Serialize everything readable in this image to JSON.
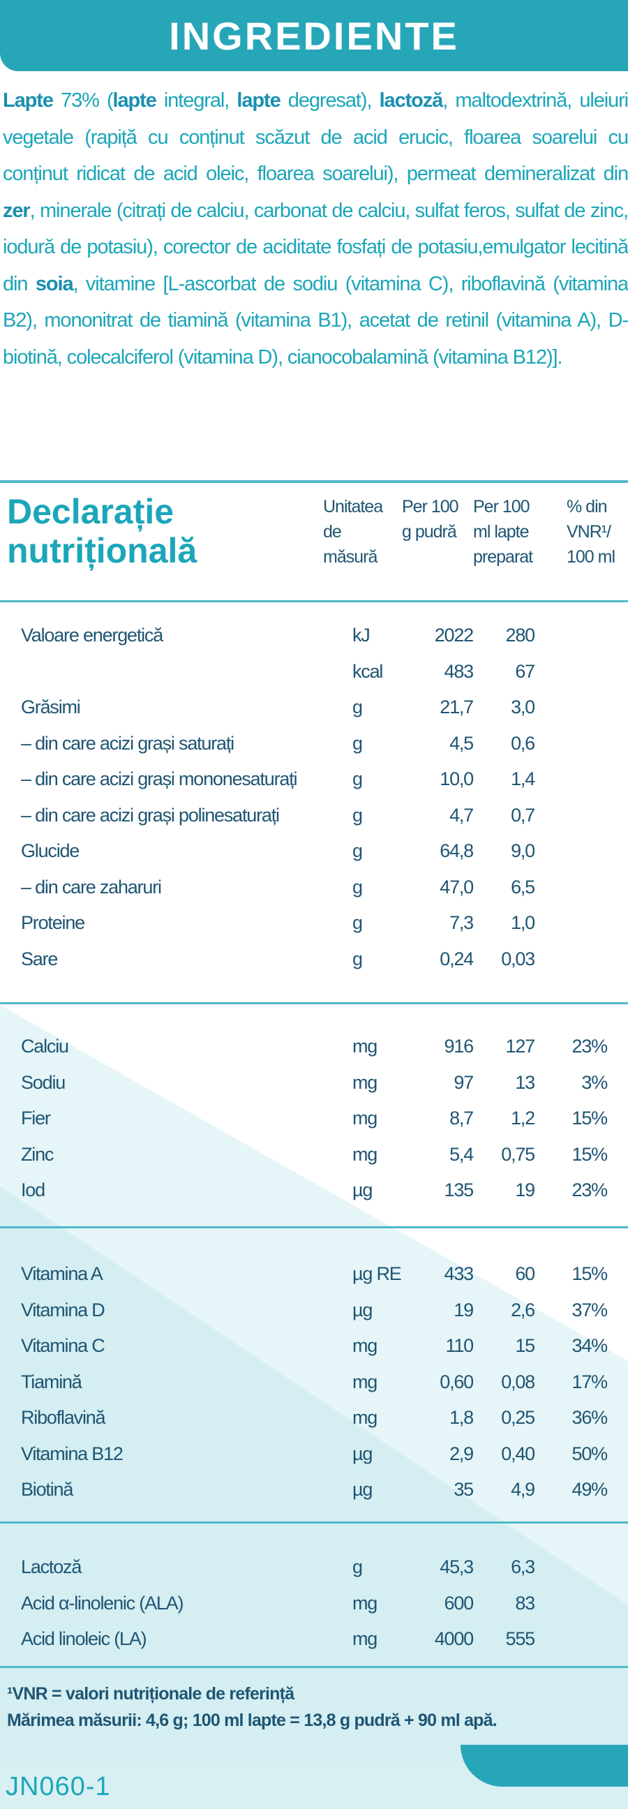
{
  "header": {
    "title": "INGREDIENTE"
  },
  "ingredients": {
    "segments": [
      {
        "text": "Lapte",
        "bold": true
      },
      {
        "text": " 73% (",
        "bold": false
      },
      {
        "text": "lapte",
        "bold": true
      },
      {
        "text": " integral, ",
        "bold": false
      },
      {
        "text": "lapte",
        "bold": true
      },
      {
        "text": " degresat), ",
        "bold": false
      },
      {
        "text": "lactoză",
        "bold": true
      },
      {
        "text": ", maltodextrină, uleiuri vegetale (rapiță cu conținut scăzut de acid erucic, floarea soarelui cu conținut ridicat de acid oleic, floarea soarelui), permeat demineralizat din ",
        "bold": false
      },
      {
        "text": "zer",
        "bold": true
      },
      {
        "text": ", minerale (citrați de calciu, carbonat de calciu, sulfat feros, sulfat de zinc, iodură de potasiu), corector de aciditate fosfați de potasiu,emulgator lecitină din ",
        "bold": false
      },
      {
        "text": "soia",
        "bold": true
      },
      {
        "text": ", vitamine [L-ascorbat de sodiu (vitamina C), riboflavină (vitamina B2), mononitrat de tiamină (vitamina B1), acetat de retinil (vitamina A), D-biotină, colecalciferol (vitamina D), cianocobalamină (vitamina B12)].",
        "bold": false
      }
    ]
  },
  "nutrition": {
    "title": "Declarație nutrițională",
    "columns": [
      "Unitatea de măsură",
      "Per 100 g pudră",
      "Per 100 ml lapte preparat",
      "% din VNR¹/ 100 ml"
    ],
    "groups": [
      [
        {
          "name": "Valoare energetică",
          "unit": "kJ",
          "per_100g": "2022",
          "per_100ml": "280"
        },
        {
          "unit": "kcal",
          "per_100g": "483",
          "per_100ml": "67"
        },
        {
          "name": "Grăsimi",
          "unit": "g",
          "per_100g": "21,7",
          "per_100ml": "3,0"
        },
        {
          "name": "– din care acizi grași saturați",
          "unit": "g",
          "per_100g": "4,5",
          "per_100ml": "0,6"
        },
        {
          "name": "– din care acizi grași mononesaturați",
          "unit": "g",
          "per_100g": "10,0",
          "per_100ml": "1,4"
        },
        {
          "name": "– din care acizi grași polinesaturați",
          "unit": "g",
          "per_100g": "4,7",
          "per_100ml": "0,7"
        },
        {
          "name": "Glucide",
          "unit": "g",
          "per_100g": "64,8",
          "per_100ml": "9,0"
        },
        {
          "name": "– din care zaharuri",
          "unit": "g",
          "per_100g": "47,0",
          "per_100ml": "6,5"
        },
        {
          "name": "Proteine",
          "unit": "g",
          "per_100g": "7,3",
          "per_100ml": "1,0"
        },
        {
          "name": "Sare",
          "unit": "g",
          "per_100g": "0,24",
          "per_100ml": "0,03"
        }
      ],
      [
        {
          "name": "Calciu",
          "unit": "mg",
          "per_100g": "916",
          "per_100ml": "127",
          "vnr": "23%"
        },
        {
          "name": "Sodiu",
          "unit": "mg",
          "per_100g": "97",
          "per_100ml": "13",
          "vnr": "3%"
        },
        {
          "name": "Fier",
          "unit": "mg",
          "per_100g": "8,7",
          "per_100ml": "1,2",
          "vnr": "15%"
        },
        {
          "name": "Zinc",
          "unit": "mg",
          "per_100g": "5,4",
          "per_100ml": "0,75",
          "vnr": "15%"
        },
        {
          "name": "Iod",
          "unit": "µg",
          "per_100g": "135",
          "per_100ml": "19",
          "vnr": "23%"
        }
      ],
      [
        {
          "name": "Vitamina A",
          "unit": "µg RE",
          "per_100g": "433",
          "per_100ml": "60",
          "vnr": "15%"
        },
        {
          "name": "Vitamina D",
          "unit": "µg",
          "per_100g": "19",
          "per_100ml": "2,6",
          "vnr": "37%"
        },
        {
          "name": "Vitamina C",
          "unit": "mg",
          "per_100g": "110",
          "per_100ml": "15",
          "vnr": "34%"
        },
        {
          "name": "Tiamină",
          "unit": "mg",
          "per_100g": "0,60",
          "per_100ml": "0,08",
          "vnr": "17%"
        },
        {
          "name": "Riboflavină",
          "unit": "mg",
          "per_100g": "1,8",
          "per_100ml": "0,25",
          "vnr": "36%"
        },
        {
          "name": "Vitamina B12",
          "unit": "µg",
          "per_100g": "2,9",
          "per_100ml": "0,40",
          "vnr": "50%"
        },
        {
          "name": "Biotină",
          "unit": "µg",
          "per_100g": "35",
          "per_100ml": "4,9",
          "vnr": "49%"
        }
      ],
      [
        {
          "name": "Lactoză",
          "unit": "g",
          "per_100g": "45,3",
          "per_100ml": "6,3"
        },
        {
          "name": "Acid α-linolenic (ALA)",
          "unit": "mg",
          "per_100g": "600",
          "per_100ml": "83"
        },
        {
          "name": "Acid linoleic (LA)",
          "unit": "mg",
          "per_100g": "4000",
          "per_100ml": "555"
        }
      ]
    ],
    "footnotes": [
      "¹VNR = valori nutriționale de referință",
      "Mărimea măsurii: 4,6 g; 100 ml lapte = 13,8 g pudră + 90 ml apă."
    ]
  },
  "code": "JN060-1"
}
